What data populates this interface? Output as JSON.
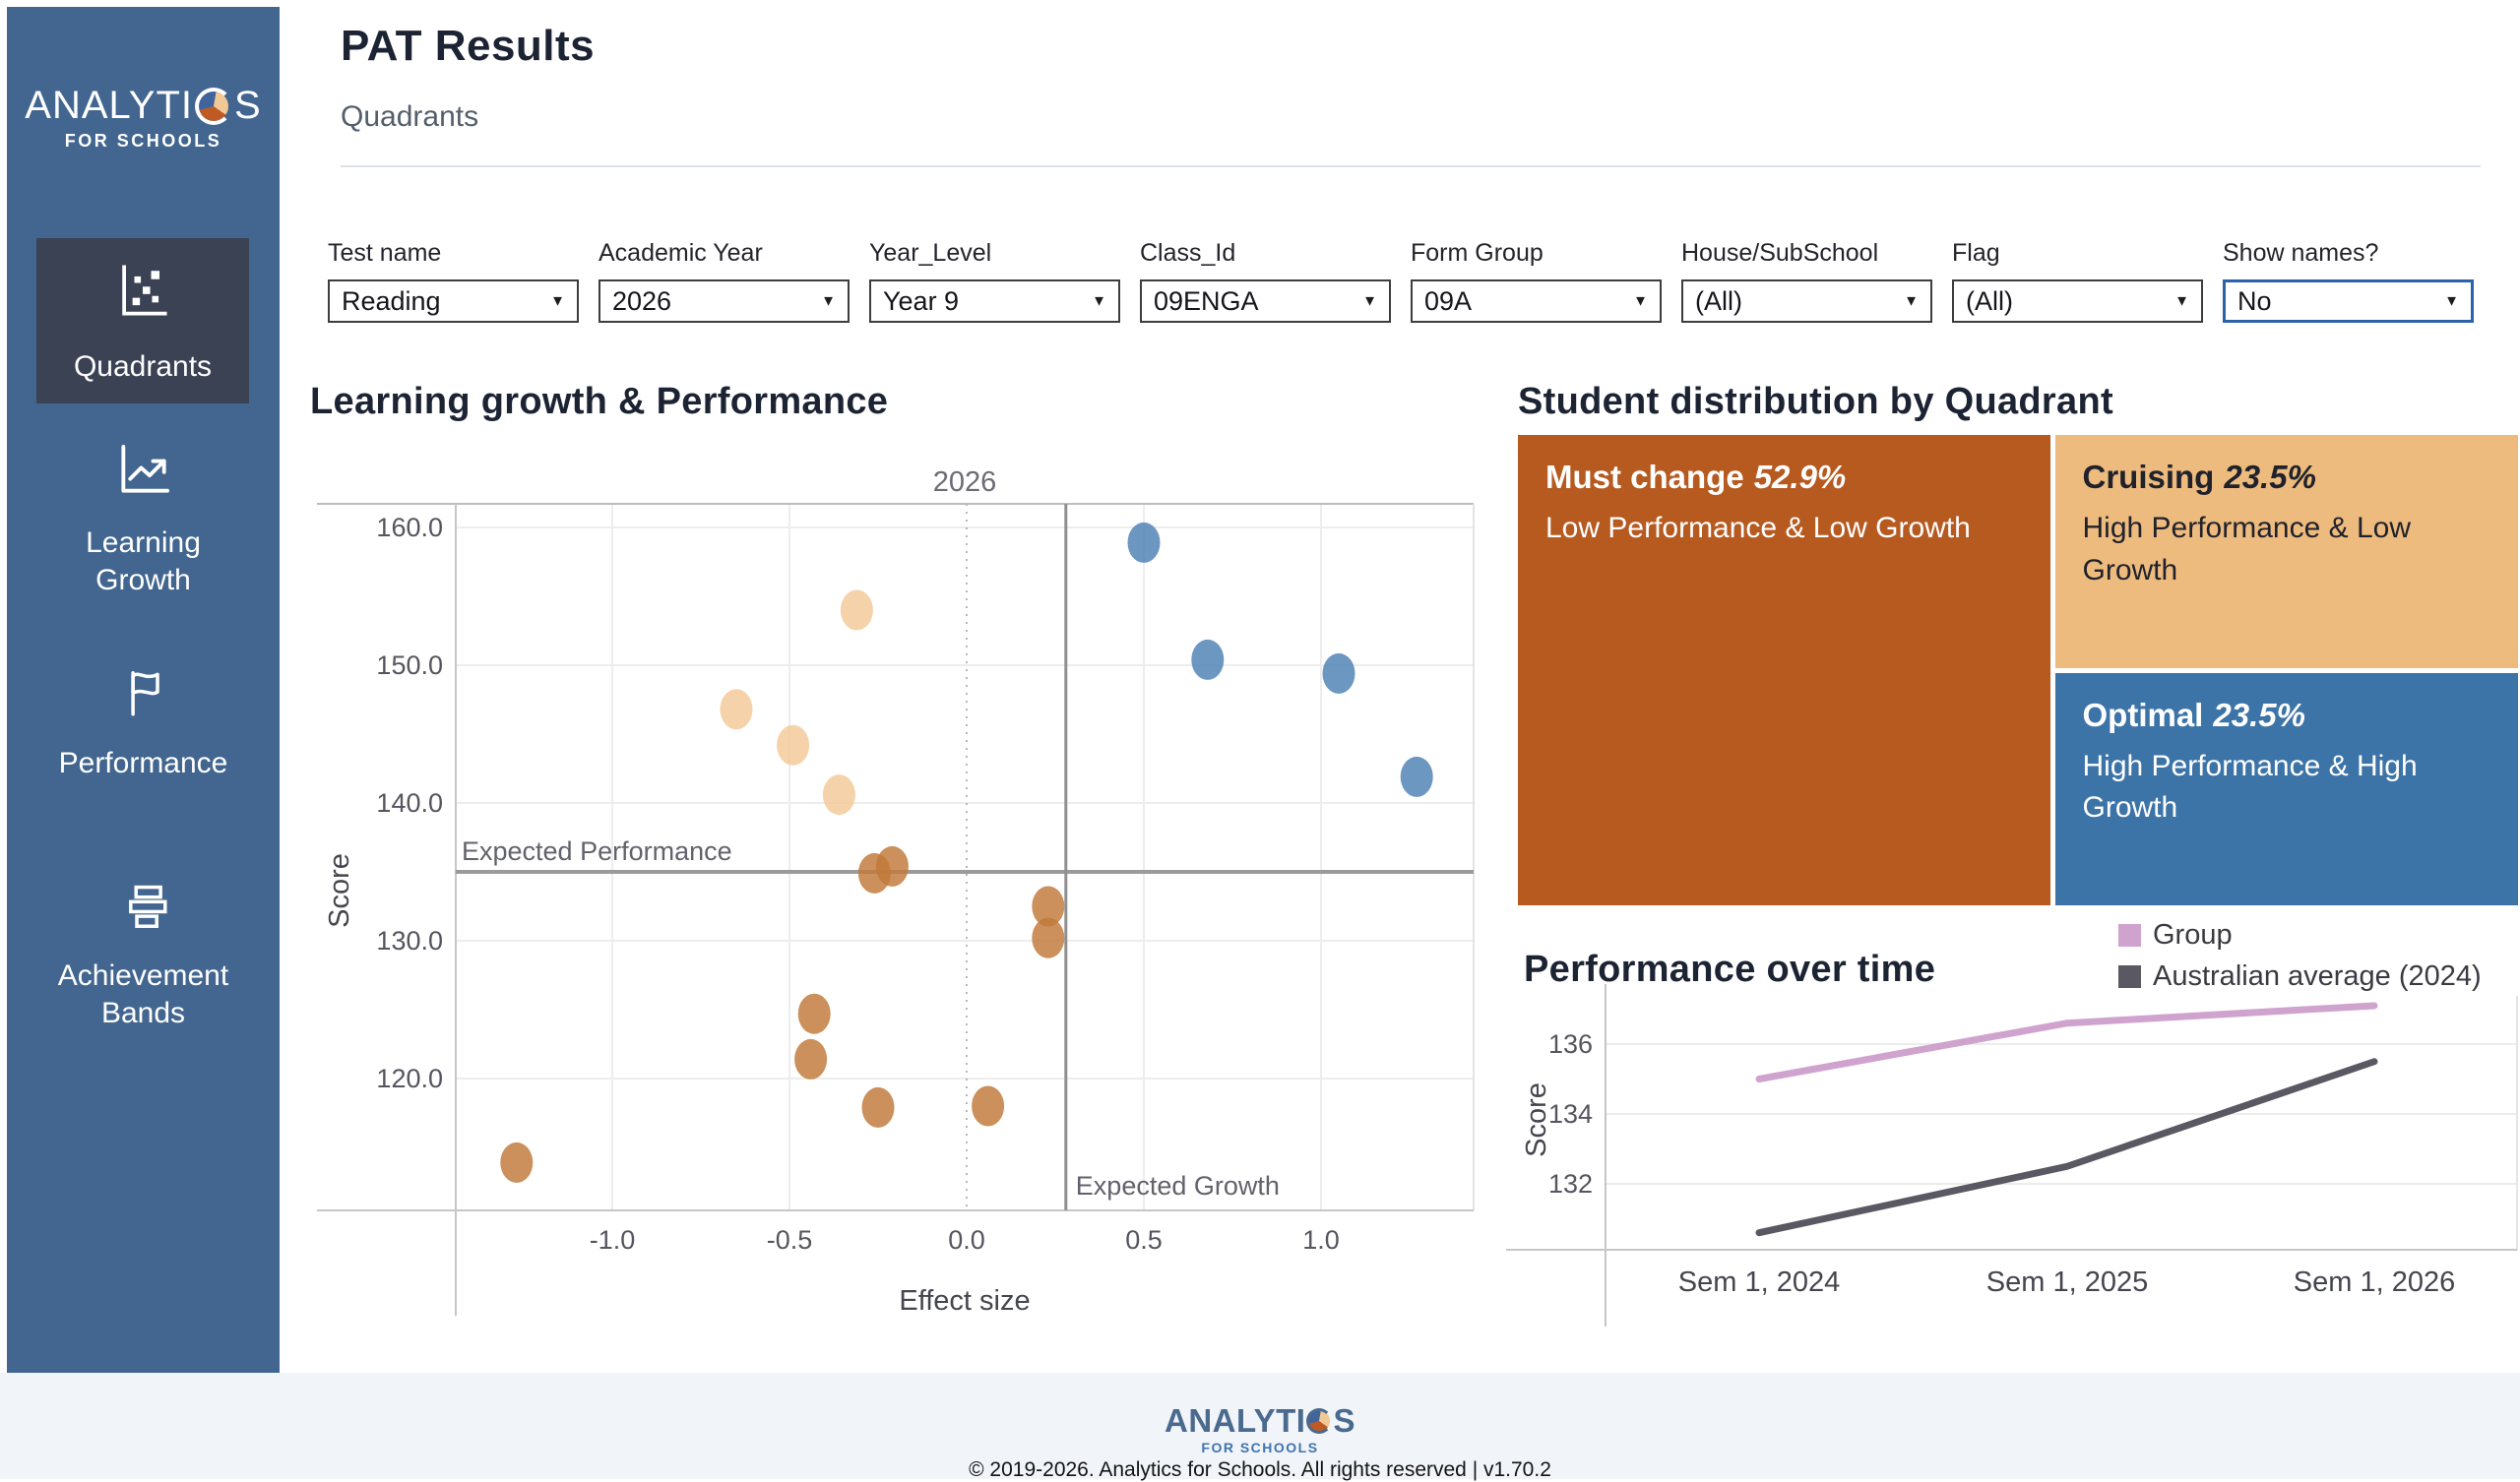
{
  "colors": {
    "sidebar_bg": "#42668f",
    "sidebar_active_bg": "#3a4253",
    "footer_bg": "#f1f4f9",
    "focus_border": "#2c62a9",
    "must_change": "#b65a20",
    "cruising": "#eebb7f",
    "optimal": "#3d74a8",
    "scatter_blue": "#4e82b4",
    "scatter_light_orange": "#f3c998",
    "scatter_dark_orange": "#c07a3a",
    "line_group": "#cfa3cd",
    "line_australian": "#5a5862"
  },
  "sidebar": {
    "logo_prefix": "ANALYTI",
    "logo_suffix": "S",
    "logo_sub": "FOR SCHOOLS",
    "items": [
      {
        "label": "Quadrants",
        "icon": "scatter",
        "active": true
      },
      {
        "label": "Learning Growth",
        "icon": "trend",
        "active": false
      },
      {
        "label": "Performance",
        "icon": "flag",
        "active": false
      },
      {
        "label": "Achievement Bands",
        "icon": "bands",
        "active": false
      }
    ]
  },
  "header": {
    "title": "PAT Results",
    "subtitle": "Quadrants"
  },
  "filters": [
    {
      "label": "Test name",
      "value": "Reading",
      "focused": false
    },
    {
      "label": "Academic Year",
      "value": "2026",
      "focused": false
    },
    {
      "label": "Year_Level",
      "value": "Year 9",
      "focused": false
    },
    {
      "label": "Class_Id",
      "value": "09ENGA",
      "focused": false
    },
    {
      "label": "Form Group",
      "value": "09A",
      "focused": false
    },
    {
      "label": "House/SubSchool",
      "value": "(All)",
      "focused": false
    },
    {
      "label": "Flag",
      "value": "(All)",
      "focused": false
    },
    {
      "label": "Show names?",
      "value": "No",
      "focused": true
    }
  ],
  "chart_data": [
    {
      "type": "scatter",
      "title": "Learning growth & Performance",
      "pane_label": "2026",
      "xlabel": "Effect size",
      "ylabel": "Score",
      "xlim": [
        -1.44,
        1.43
      ],
      "ylim": [
        110.4,
        161.7
      ],
      "xticks": [
        -1.0,
        -0.5,
        0.0,
        0.5,
        1.0
      ],
      "yticks": [
        120.0,
        130.0,
        140.0,
        150.0,
        160.0
      ],
      "grid": true,
      "ref_lines": {
        "expected_performance": {
          "label": "Expected Performance",
          "value": 135.0
        },
        "expected_growth": {
          "label": "Expected Growth",
          "value": 0.28
        }
      },
      "series": [
        {
          "name": "Optimal",
          "color": "#4e82b4",
          "points": [
            [
              0.5,
              158.9
            ],
            [
              0.68,
              150.4
            ],
            [
              1.05,
              149.4
            ],
            [
              1.27,
              141.9
            ]
          ]
        },
        {
          "name": "Cruising",
          "color": "#f3c998",
          "points": [
            [
              -0.31,
              154.0
            ],
            [
              -0.65,
              146.8
            ],
            [
              -0.49,
              144.2
            ],
            [
              -0.36,
              140.6
            ]
          ]
        },
        {
          "name": "Must change",
          "color": "#c07a3a",
          "points": [
            [
              -0.21,
              135.4
            ],
            [
              -0.26,
              134.9
            ],
            [
              0.23,
              132.5
            ],
            [
              0.23,
              130.2
            ],
            [
              -0.43,
              124.7
            ],
            [
              -0.44,
              121.4
            ],
            [
              -0.25,
              117.9
            ],
            [
              0.06,
              118.0
            ],
            [
              -1.27,
              113.9
            ]
          ]
        }
      ]
    },
    {
      "type": "treemap",
      "title": "Student distribution by Quadrant",
      "cells": [
        {
          "name": "Must change",
          "pct": "52.9%",
          "desc": "Low Performance & Low Growth",
          "color": "#b65a20",
          "text_color": "#ffffff"
        },
        {
          "name": "Cruising",
          "pct": "23.5%",
          "desc": "High Performance & Low Growth",
          "color": "#eebb7f",
          "text_color": "#20222b"
        },
        {
          "name": "Optimal",
          "pct": "23.5%",
          "desc": "High Performance & High Growth",
          "color": "#3d74a8",
          "text_color": "#ffffff"
        }
      ]
    },
    {
      "type": "line",
      "title": "Performance over time",
      "ylabel": "Score",
      "categories": [
        "Sem 1, 2024",
        "Sem 1, 2025",
        "Sem 1, 2026"
      ],
      "yticks": [
        132,
        134,
        136
      ],
      "ylim": [
        130,
        137.6
      ],
      "grid": true,
      "legend_position": "top-right",
      "series": [
        {
          "name": "Group",
          "color": "#cfa3cd",
          "values": [
            135.0,
            136.6,
            137.1
          ]
        },
        {
          "name": "Australian average (2024)",
          "color": "#5a5862",
          "values": [
            130.6,
            132.5,
            135.5
          ]
        }
      ]
    }
  ],
  "footer": {
    "logo_prefix": "ANALYTI",
    "logo_suffix": "S",
    "logo_sub": "FOR SCHOOLS",
    "copyright": "© 2019-2026. Analytics for Schools. All rights reserved | v1.70.2"
  }
}
